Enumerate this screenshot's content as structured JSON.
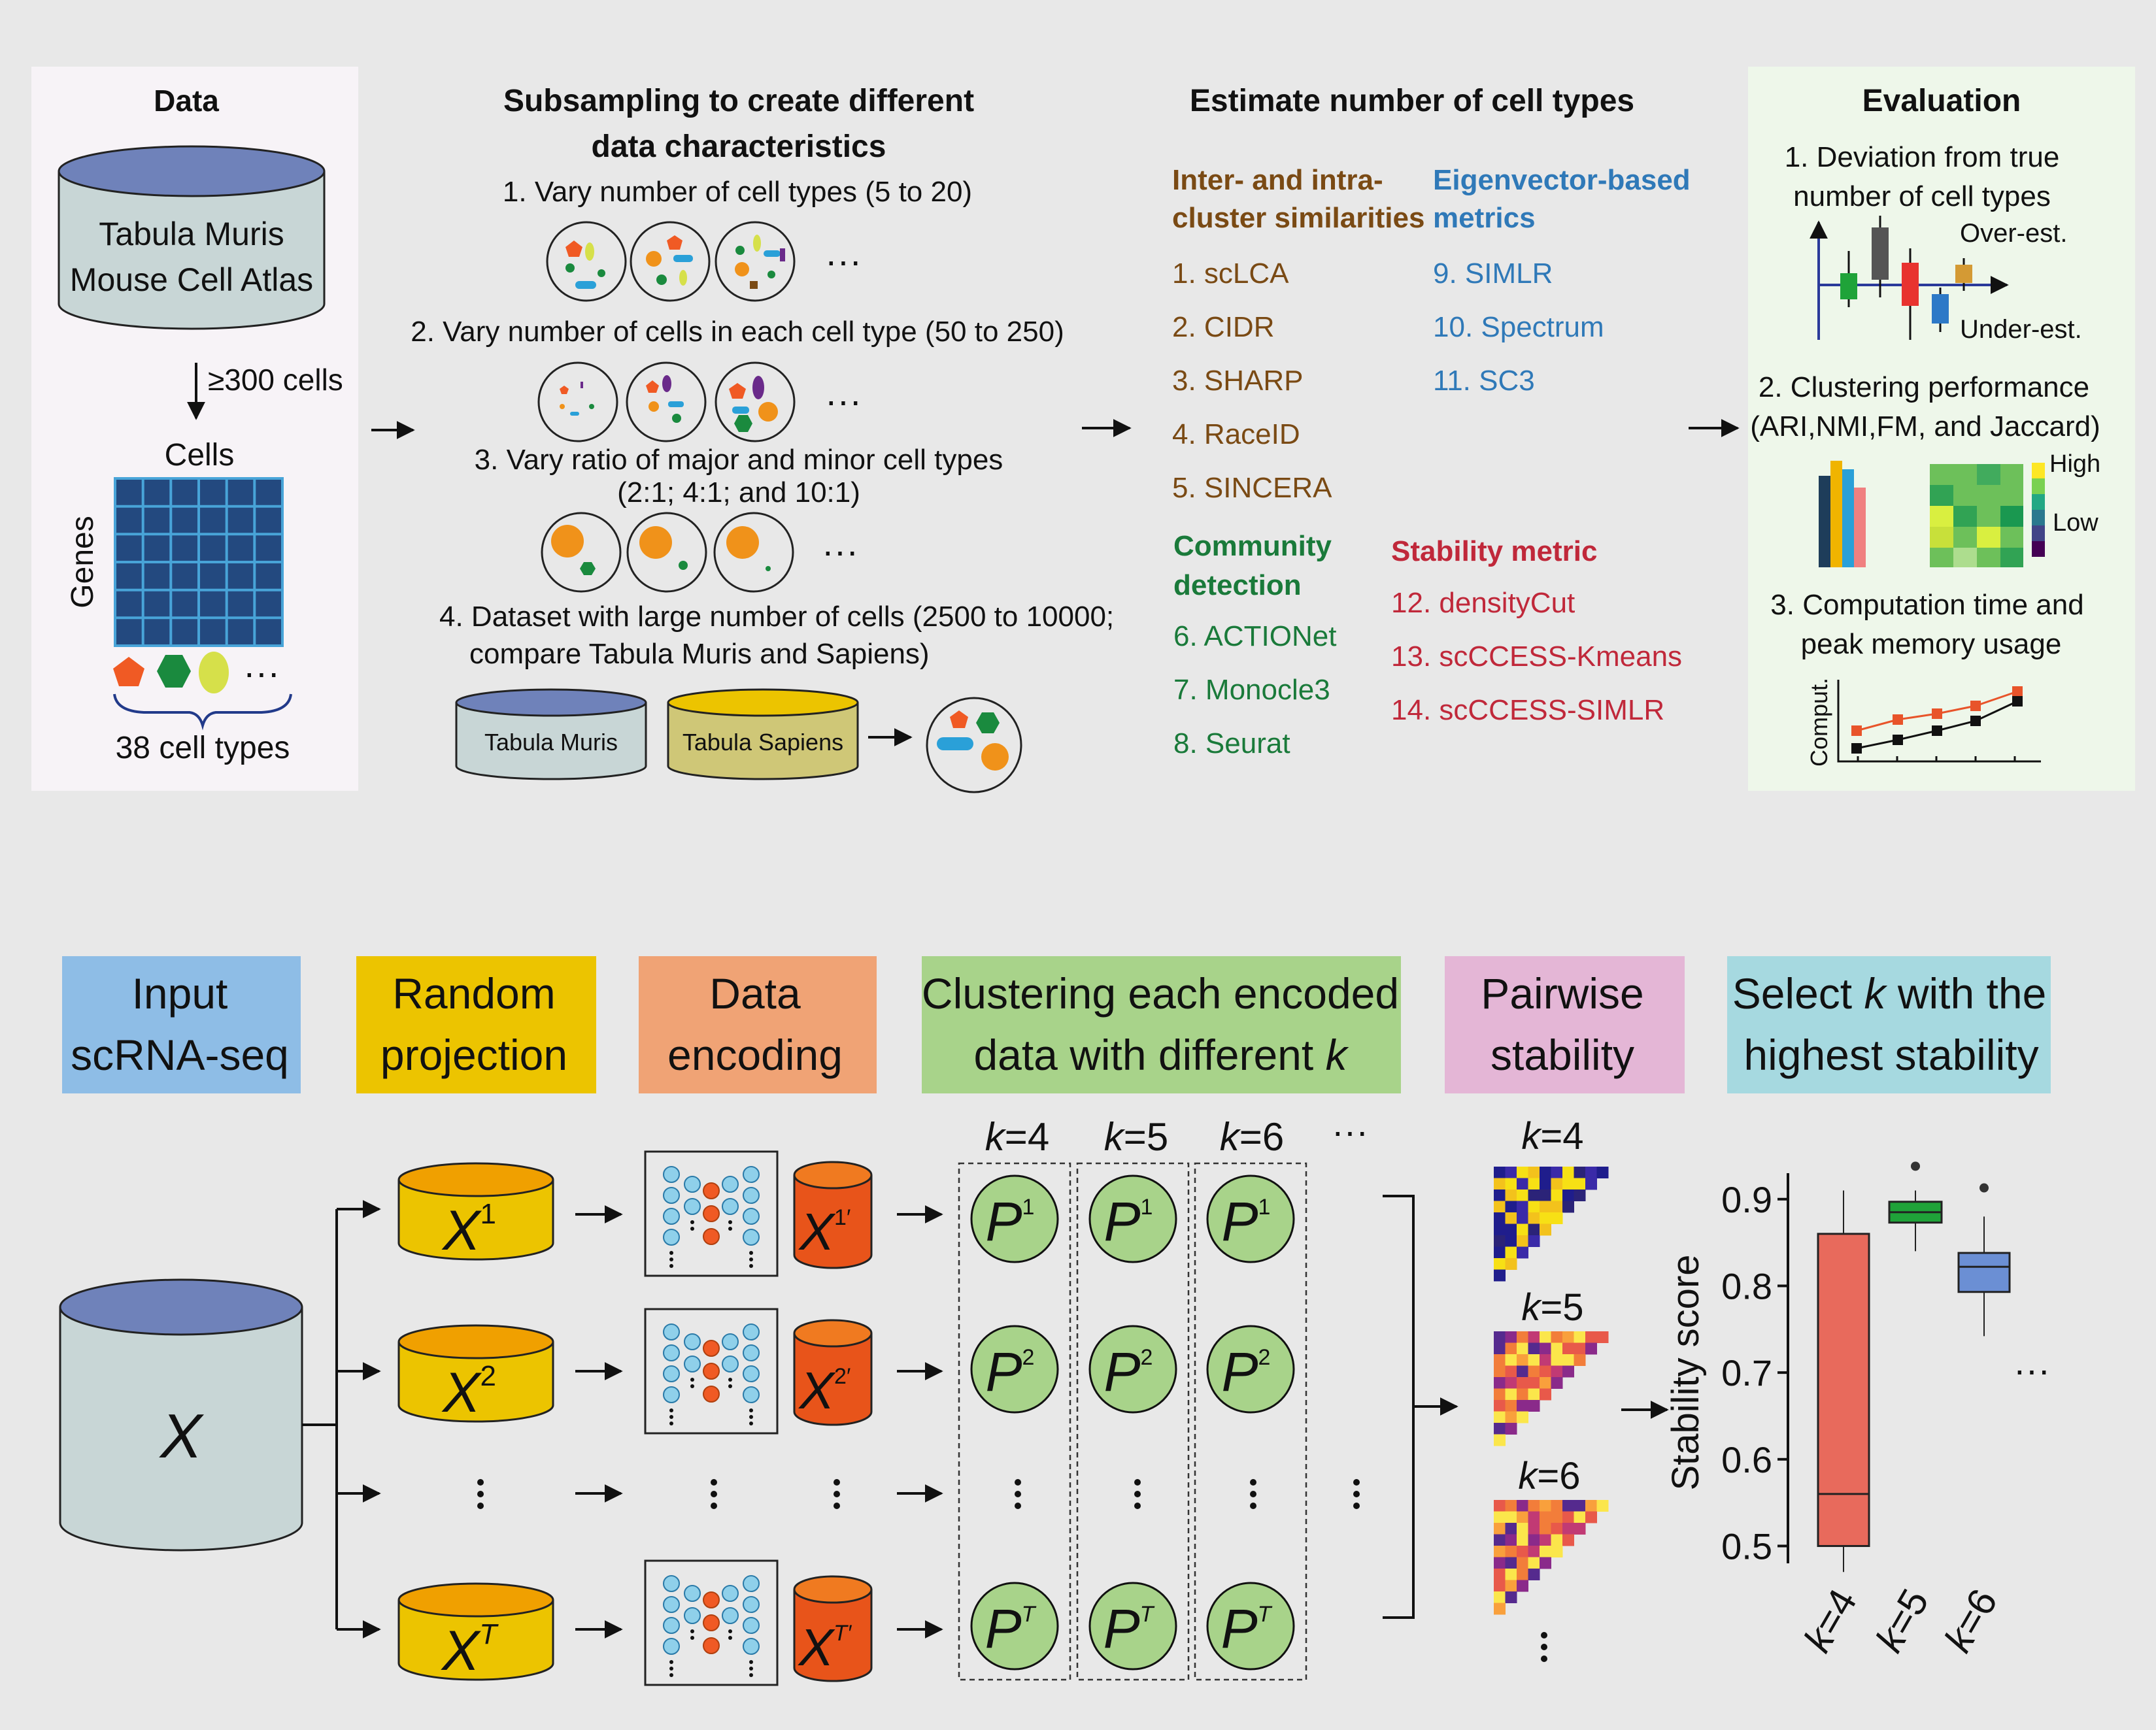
{
  "colors": {
    "background": "#e8e8e8",
    "data_panel": "#f7f3f7",
    "eval_panel": "#eef7ea",
    "brown_heading": "#7a4a14",
    "blue_heading": "#2f79b8",
    "green_heading": "#1a7a3a",
    "red_heading": "#c0283a",
    "input_box": "#8ebde6",
    "random_box": "#ecc400",
    "encoding_box": "#f0a375",
    "clustering_box": "#a8d38a",
    "pairwise_box": "#e4b6d6",
    "select_box": "#a6d9e0"
  },
  "top": {
    "data": {
      "title": "Data",
      "db_line1": "Tabula Muris",
      "db_line2": "Mouse Cell Atlas",
      "arrow_label": "≥300 cells",
      "cells_label": "Cells",
      "genes_label": "Genes",
      "cell_types_label": "38 cell types"
    },
    "subsampling": {
      "title_line1": "Subsampling to create different",
      "title_line2": "data characteristics",
      "item1": "1. Vary number of cell types (5 to 20)",
      "item2": "2. Vary number of cells in each cell type (50 to 250)",
      "item3_line1": "3. Vary ratio of major and minor cell types",
      "item3_line2": "(2:1; 4:1; and 10:1)",
      "item4_line1": "4. Dataset with large number of cells (2500 to 10000;",
      "item4_line2": "compare Tabula Muris and Sapiens)",
      "db_muris": "Tabula Muris",
      "db_sapiens": "Tabula Sapiens"
    },
    "estimate": {
      "title": "Estimate number of cell types",
      "group1_line1": "Inter- and intra-",
      "group1_line2": "cluster similarities",
      "group1_items": [
        "1. scLCA",
        "2. CIDR",
        "3. SHARP",
        "4. RaceID",
        "5. SINCERA"
      ],
      "group2_line1": "Eigenvector-based",
      "group2_line2": "metrics",
      "group2_items": [
        "9. SIMLR",
        "10. Spectrum",
        "11. SC3"
      ],
      "group3_line1": "Community",
      "group3_line2": "detection",
      "group3_items": [
        "6. ACTIONet",
        "7. Monocle3",
        "8. Seurat"
      ],
      "group4_title": "Stability metric",
      "group4_items": [
        "12. densityCut",
        "13. scCCESS-Kmeans",
        "14. scCCESS-SIMLR"
      ]
    },
    "evaluation": {
      "title": "Evaluation",
      "item1_line1": "1. Deviation from true",
      "item1_line2": "number of cell types",
      "over_label": "Over-est.",
      "under_label": "Under-est.",
      "item2_line1": "2. Clustering performance",
      "item2_line2": "(ARI,NMI,FM, and Jaccard)",
      "high_label": "High",
      "low_label": "Low",
      "item3_line1": "3. Computation time and",
      "item3_line2": "peak memory usage",
      "comput_label": "Comput."
    }
  },
  "bottom": {
    "headers": {
      "input_l1": "Input",
      "input_l2": "scRNA-seq",
      "random_l1": "Random",
      "random_l2": "projection",
      "encoding_l1": "Data",
      "encoding_l2": "encoding",
      "clustering_l1": "Clustering each encoded",
      "clustering_l2a": "data with different ",
      "clustering_l2k": "k",
      "pairwise_l1": "Pairwise",
      "pairwise_l2": "stability",
      "select_l1a": "Select ",
      "select_l1k": "k",
      "select_l1b": " with the",
      "select_l2": "highest stability"
    },
    "x_label": "X",
    "sup_1": "1",
    "sup_2": "2",
    "sup_T": "T",
    "sup_1p": "1′",
    "sup_2p": "2′",
    "sup_Tp": "T′",
    "p_label": "P",
    "k_eq": "=",
    "k_sym": "k",
    "k4": "4",
    "k5": "5",
    "k6": "6",
    "ellipsis": "···",
    "ylabel": "Stability score"
  },
  "chart_data": {
    "type": "box",
    "ylabel": "Stability score",
    "ylim": [
      0.48,
      0.93
    ],
    "yticks": [
      0.5,
      0.6,
      0.7,
      0.8,
      0.9
    ],
    "ytick_labels": [
      "0.5",
      "0.6",
      "0.7",
      "0.8",
      "0.9"
    ],
    "categories": [
      "k=4",
      "k=5",
      "k=6"
    ],
    "boxes": [
      {
        "category": "k=4",
        "whisker_low": 0.47,
        "q1": 0.5,
        "median": 0.56,
        "q3": 0.86,
        "whisker_high": 0.91,
        "outliers": [],
        "color": "#e86a5c"
      },
      {
        "category": "k=5",
        "whisker_low": 0.84,
        "q1": 0.873,
        "median": 0.885,
        "q3": 0.897,
        "whisker_high": 0.91,
        "outliers": [
          0.938
        ],
        "color": "#1fa339"
      },
      {
        "category": "k=6",
        "whisker_low": 0.742,
        "q1": 0.793,
        "median": 0.822,
        "q3": 0.838,
        "whisker_high": 0.88,
        "outliers": [
          0.913
        ],
        "color": "#6b8fd4"
      }
    ]
  }
}
